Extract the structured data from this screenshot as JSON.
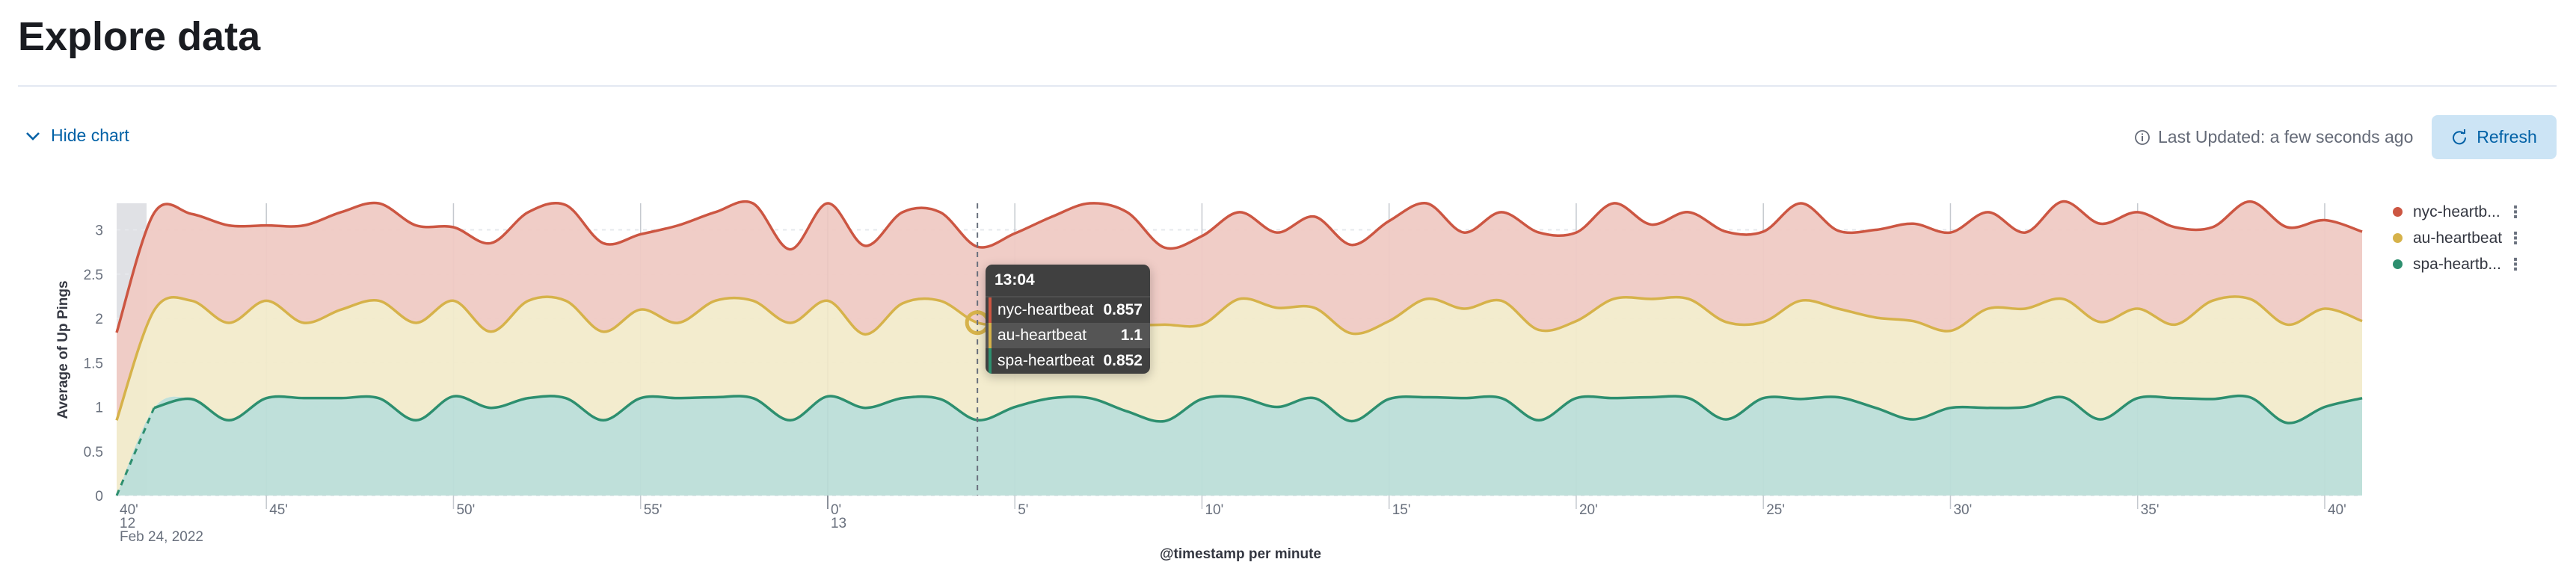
{
  "header": {
    "title": "Explore data"
  },
  "toolbar": {
    "hide_chart_label": "Hide chart",
    "last_updated_label": "Last Updated: a few seconds ago",
    "refresh_label": "Refresh"
  },
  "icons": {
    "hide_chart": "chevron-down-icon",
    "last_updated": "info-icon",
    "refresh": "refresh-icon",
    "legend_menu": "vertical-dots-icon"
  },
  "legend": {
    "placement": "right",
    "items": [
      {
        "label": "nyc-heartb...",
        "color": "#cc5642"
      },
      {
        "label": "au-heartbeat",
        "color": "#d6b24a"
      },
      {
        "label": "spa-heartb...",
        "color": "#2d8f6f"
      }
    ]
  },
  "tooltip": {
    "title": "13:04",
    "rows": [
      {
        "name": "nyc-heartbeat",
        "value": "0.857",
        "color": "#cc5642"
      },
      {
        "name": "au-heartbeat",
        "value": "1.1",
        "color": "#d6b24a"
      },
      {
        "name": "spa-heartbeat",
        "value": "0.852",
        "color": "#2d8f6f"
      }
    ]
  },
  "chart_data": {
    "type": "area",
    "stacked": true,
    "curve": "smooth",
    "xlabel": "@timestamp per minute",
    "ylabel": "Average of Up Pings",
    "x_start": "2022-02-24 12:41",
    "x_interval": "1 minute",
    "xlim": [
      "12:40",
      "13:41"
    ],
    "ylim": [
      0,
      3.3
    ],
    "grid": true,
    "yticks": [
      "0",
      "0.5",
      "1",
      "1.5",
      "2",
      "2.5",
      "3"
    ],
    "xticks": [
      {
        "minute": 40,
        "label": "40'",
        "sub": "12",
        "date": "Feb 24, 2022"
      },
      {
        "minute": 45,
        "label": "45'"
      },
      {
        "minute": 50,
        "label": "50'"
      },
      {
        "minute": 55,
        "label": "55'"
      },
      {
        "minute": 60,
        "label": "0'",
        "sub": "13"
      },
      {
        "minute": 65,
        "label": "5'"
      },
      {
        "minute": 70,
        "label": "10'"
      },
      {
        "minute": 75,
        "label": "15'"
      },
      {
        "minute": 80,
        "label": "20'"
      },
      {
        "minute": 85,
        "label": "25'"
      },
      {
        "minute": 90,
        "label": "30'"
      },
      {
        "minute": 95,
        "label": "35'"
      },
      {
        "minute": 100,
        "label": "40'"
      }
    ],
    "highlight_time": "13:04",
    "series": [
      {
        "name": "spa-heartbeat",
        "color": "#2d8f6f",
        "fill": "#bcded8",
        "values": [
          null,
          0.99,
          1.09,
          0.85,
          1.1,
          1.1,
          1.1,
          1.1,
          0.85,
          1.12,
          0.99,
          1.1,
          1.1,
          0.85,
          1.1,
          1.1,
          1.11,
          1.1,
          0.85,
          1.12,
          0.99,
          1.1,
          1.09,
          0.852,
          1.0,
          1.1,
          1.1,
          0.95,
          0.84,
          1.09,
          1.11,
          1.0,
          1.1,
          0.84,
          1.09,
          1.11,
          1.1,
          1.1,
          0.85,
          1.1,
          1.1,
          1.11,
          1.1,
          0.86,
          1.1,
          1.09,
          1.11,
          0.99,
          0.86,
          0.99,
          0.99,
          1.0,
          1.11,
          0.86,
          1.1,
          1.1,
          1.09,
          1.11,
          0.82,
          1.0,
          1.1
        ]
      },
      {
        "name": "au-heartbeat",
        "color": "#d6b24a",
        "fill": "#f2ebcb",
        "values": [
          0.85,
          1.1,
          1.11,
          1.1,
          1.1,
          0.85,
          1.0,
          1.1,
          1.1,
          1.08,
          0.86,
          1.1,
          1.1,
          1.0,
          1.0,
          0.85,
          1.09,
          1.1,
          1.1,
          1.08,
          0.83,
          1.07,
          1.11,
          1.1,
          0.93,
          0.83,
          0.83,
          0.97,
          1.09,
          0.84,
          1.11,
          1.12,
          1.02,
          0.99,
          0.88,
          1.11,
          1.01,
          1.1,
          1.02,
          0.87,
          1.12,
          1.11,
          1.12,
          1.1,
          0.86,
          1.11,
          1.0,
          1.02,
          1.11,
          0.87,
          1.12,
          1.11,
          1.11,
          1.1,
          1.01,
          0.83,
          1.11,
          1.11,
          1.11,
          1.11,
          0.87
        ]
      },
      {
        "name": "nyc-heartbeat",
        "color": "#cc5642",
        "fill": "#efcac4",
        "values": [
          0.99,
          1.1,
          0.98,
          1.1,
          0.85,
          1.1,
          1.1,
          1.1,
          1.1,
          0.83,
          1.0,
          1.0,
          1.08,
          1.0,
          0.85,
          1.1,
          1.0,
          1.1,
          0.83,
          1.1,
          1.0,
          1.03,
          1.0,
          0.857,
          1.03,
          1.22,
          1.37,
          1.28,
          0.87,
          1.0,
          0.98,
          0.85,
          1.03,
          1.0,
          1.13,
          1.08,
          0.86,
          1.0,
          1.1,
          1.0,
          1.08,
          0.84,
          0.98,
          1.02,
          1.02,
          1.1,
          0.88,
          0.99,
          1.1,
          1.11,
          1.09,
          0.86,
          1.1,
          1.11,
          1.09,
          1.1,
          0.83,
          1.1,
          1.1,
          1.0,
          1.01
        ]
      }
    ]
  }
}
